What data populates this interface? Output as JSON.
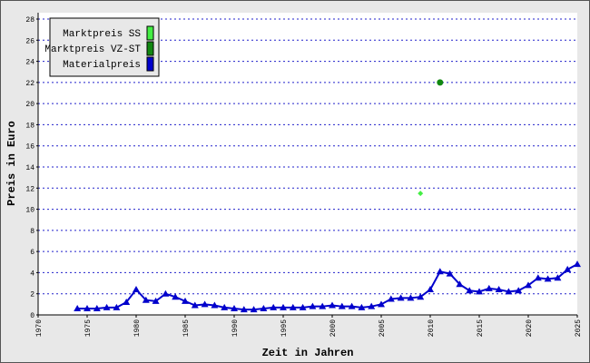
{
  "chart_data": {
    "type": "line",
    "x_label": "Zeit in Jahren",
    "y_label": "Preis in Euro",
    "xlim": [
      1970,
      2025
    ],
    "xticks": [
      1970,
      1975,
      1980,
      1985,
      1990,
      1995,
      2000,
      2005,
      2010,
      2015,
      2020,
      2025
    ],
    "ylim": [
      0,
      28
    ],
    "yticks": [
      0,
      2,
      4,
      6,
      8,
      10,
      12,
      14,
      16,
      18,
      20,
      22,
      24,
      26,
      28
    ],
    "grid": true,
    "legend": "top-left",
    "series": [
      {
        "name": "Marktpreis SS",
        "color": "#44ee44",
        "marker": "diamond",
        "line": false,
        "x": [
          2009
        ],
        "values": [
          11.5
        ]
      },
      {
        "name": "Marktpreis VZ-ST",
        "color": "#118811",
        "marker": "circle",
        "line": false,
        "x": [
          2011
        ],
        "values": [
          22.0
        ]
      },
      {
        "name": "Materialpreis",
        "color": "#0000cc",
        "marker": "triangle",
        "line": true,
        "x": [
          1974,
          1975,
          1976,
          1977,
          1978,
          1979,
          1980,
          1981,
          1982,
          1983,
          1984,
          1985,
          1986,
          1987,
          1988,
          1989,
          1990,
          1991,
          1992,
          1993,
          1994,
          1995,
          1996,
          1997,
          1998,
          1999,
          2000,
          2001,
          2002,
          2003,
          2004,
          2005,
          2006,
          2007,
          2008,
          2009,
          2010,
          2011,
          2012,
          2013,
          2014,
          2015,
          2016,
          2017,
          2018,
          2019,
          2020,
          2021,
          2022,
          2023,
          2024,
          2025
        ],
        "values": [
          0.6,
          0.6,
          0.6,
          0.7,
          0.7,
          1.2,
          2.4,
          1.4,
          1.3,
          2.0,
          1.7,
          1.3,
          0.9,
          1.0,
          0.9,
          0.7,
          0.6,
          0.5,
          0.5,
          0.6,
          0.7,
          0.7,
          0.7,
          0.7,
          0.8,
          0.8,
          0.9,
          0.8,
          0.8,
          0.7,
          0.8,
          1.0,
          1.5,
          1.6,
          1.6,
          1.7,
          2.4,
          4.1,
          3.9,
          2.9,
          2.3,
          2.2,
          2.5,
          2.4,
          2.2,
          2.3,
          2.8,
          3.5,
          3.4,
          3.5,
          4.3,
          4.8
        ]
      }
    ]
  }
}
